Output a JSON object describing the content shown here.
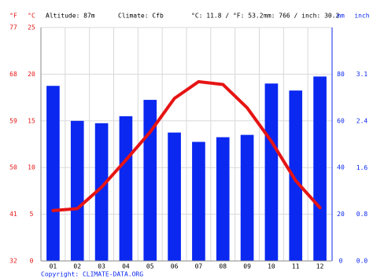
{
  "chart_data": {
    "type": "bar",
    "info": [
      "Altitude: 87m",
      "Climate: Cfb",
      "°C: 11.8 / °F: 53.2",
      "mm: 766 / inch: 30.2"
    ],
    "ylabel": "°C",
    "y2label": "mm",
    "y3label": "°F",
    "y4label": "inch",
    "categories": [
      "01",
      "02",
      "03",
      "04",
      "05",
      "06",
      "07",
      "08",
      "09",
      "10",
      "11",
      "12"
    ],
    "series": [
      {
        "type": "bar",
        "axis": "y2",
        "color": "#0a28f0",
        "values": [
          75,
          60,
          59,
          62,
          69,
          55,
          51,
          53,
          54,
          76,
          73,
          79
        ]
      },
      {
        "type": "line",
        "axis": "y",
        "color": "#e61414",
        "values": [
          5.4,
          5.6,
          7.9,
          10.8,
          13.8,
          17.4,
          19.2,
          18.9,
          16.4,
          12.8,
          8.6,
          5.7
        ]
      }
    ],
    "ylim": [
      0,
      25
    ],
    "yticks": [
      0,
      5,
      10,
      15,
      20,
      25
    ],
    "y2lim": [
      0,
      100
    ],
    "y2ticks": [
      0,
      20,
      40,
      60,
      80
    ],
    "y3lim": [
      32,
      77
    ],
    "y3ticks": [
      32,
      41,
      50,
      59,
      68,
      77
    ],
    "y4lim": [
      0,
      3.94
    ],
    "y4ticks": [
      {
        "value": 0,
        "label": "0.0"
      },
      {
        "value": 0.79,
        "label": "0.8"
      },
      {
        "value": 1.57,
        "label": "1.6"
      },
      {
        "value": 2.36,
        "label": "2.4"
      },
      {
        "value": 3.15,
        "label": "3.1"
      }
    ],
    "grid": true,
    "footer": "Copyright: CLIMATE-DATA.ORG"
  }
}
